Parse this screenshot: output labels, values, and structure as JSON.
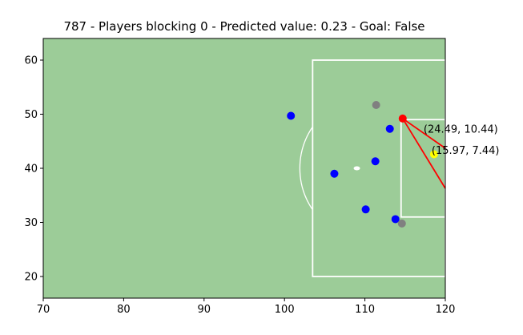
{
  "chart_data": {
    "type": "scatter",
    "title": "787 - Players blocking 0 - Predicted value: 0.23 - Goal: False",
    "xlabel": "",
    "ylabel": "",
    "xlim": [
      70,
      120
    ],
    "ylim": [
      16,
      64
    ],
    "x_ticks": [
      70,
      80,
      90,
      100,
      110,
      120
    ],
    "y_ticks": [
      20,
      30,
      40,
      50,
      60
    ],
    "grid": false,
    "background_color": "#9ccc98",
    "line_color": "#ffffff",
    "pitch_markings": {
      "penalty_box": {
        "x": [
          103.5,
          120
        ],
        "y": [
          20,
          60
        ]
      },
      "six_yard_box": {
        "x": [
          114.5,
          120
        ],
        "y": [
          31,
          49
        ]
      },
      "penalty_arc": {
        "cx": 108.5,
        "cy": 40,
        "r": 9.15
      },
      "penalty_spot": {
        "x": 109,
        "y": 40
      }
    },
    "series": [
      {
        "color": "#0000ff",
        "points": [
          {
            "x": 100.8,
            "y": 49.7
          },
          {
            "x": 113.1,
            "y": 47.3
          },
          {
            "x": 111.3,
            "y": 41.3
          },
          {
            "x": 106.2,
            "y": 39.0
          },
          {
            "x": 110.1,
            "y": 32.4
          },
          {
            "x": 113.8,
            "y": 30.6
          }
        ]
      },
      {
        "color": "#808080",
        "points": [
          {
            "x": 111.4,
            "y": 51.7
          },
          {
            "x": 114.6,
            "y": 29.8
          }
        ]
      },
      {
        "color": "#ff0000",
        "points": [
          {
            "x": 114.7,
            "y": 49.2
          }
        ]
      },
      {
        "color": "#ffff00",
        "points": [
          {
            "x": 118.6,
            "y": 42.6
          }
        ]
      }
    ],
    "shot_lines": {
      "color": "#ff0000",
      "origin": {
        "x": 114.7,
        "y": 49.2
      },
      "targets": [
        {
          "x": 120,
          "y": 43.7
        },
        {
          "x": 120,
          "y": 36.3
        }
      ]
    },
    "annotations": [
      {
        "text": "(24.49, 10.44)",
        "x": 117.3,
        "y": 46.6
      },
      {
        "text": "(15.97, 7.44)",
        "x": 118.3,
        "y": 42.7
      }
    ]
  }
}
